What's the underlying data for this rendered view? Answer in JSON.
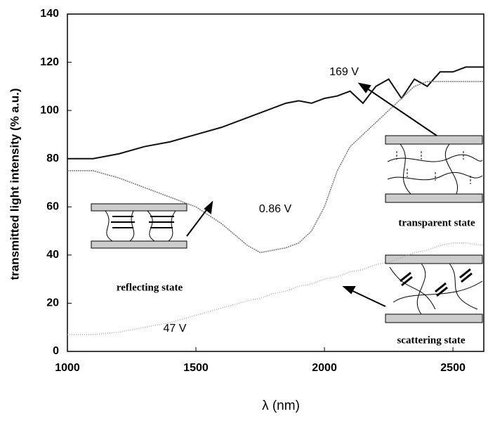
{
  "chart_data": {
    "type": "line",
    "xlabel": "λ (nm)",
    "ylabel": "transmitted light intensity (% a.u.)",
    "x": [
      1000,
      1100,
      1200,
      1300,
      1400,
      1500,
      1600,
      1700,
      1750,
      1800,
      1850,
      1900,
      1950,
      2000,
      2050,
      2100,
      2150,
      2200,
      2250,
      2300,
      2350,
      2400,
      2450,
      2500,
      2550,
      2620
    ],
    "series": [
      {
        "name": "169 V",
        "color": "#111111",
        "values": [
          80,
          80,
          82,
          85,
          87,
          90,
          93,
          97,
          99,
          101,
          103,
          104,
          103,
          105,
          106,
          108,
          103,
          110,
          113,
          105,
          113,
          110,
          116,
          116,
          118,
          118
        ]
      },
      {
        "name": "0.86 V",
        "color": "#777777",
        "values": [
          75,
          75,
          72,
          68,
          64,
          60,
          53,
          44,
          41,
          42,
          43,
          45,
          50,
          60,
          75,
          85,
          90,
          95,
          100,
          105,
          110,
          112,
          112,
          112,
          112,
          112
        ]
      },
      {
        "name": "47 V",
        "color": "#aaaaaa",
        "values": [
          7,
          7,
          8,
          10,
          12,
          15,
          18,
          21,
          22,
          24,
          25,
          27,
          28,
          30,
          31,
          33,
          34,
          36,
          37,
          39,
          41,
          42,
          44,
          45,
          45,
          44
        ]
      }
    ],
    "annotations": [
      "reflecting state",
      "transparent state",
      "scattering state"
    ],
    "xlim": [
      1000,
      2620
    ],
    "ylim": [
      0,
      140
    ],
    "xticks": [
      1000,
      1500,
      2000,
      2500
    ],
    "yticks": [
      0,
      20,
      40,
      60,
      80,
      100,
      120,
      140
    ]
  }
}
